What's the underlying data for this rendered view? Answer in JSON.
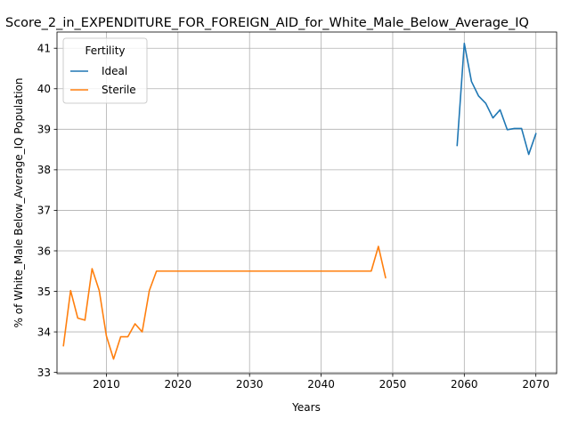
{
  "chart_data": {
    "type": "line",
    "title": "Score_2_in_EXPENDITURE_FOR_FOREIGN_AID_for_White_Male_Below_Average_IQ",
    "xlabel": "Years",
    "ylabel": "% of White_Male Below_Average_IQ Population",
    "xlim": [
      2003.1,
      2072.9
    ],
    "ylim": [
      32.97,
      41.4
    ],
    "x_ticks": [
      2010,
      2020,
      2030,
      2040,
      2050,
      2060,
      2070
    ],
    "y_ticks": [
      33,
      34,
      35,
      36,
      37,
      38,
      39,
      40,
      41
    ],
    "grid": true,
    "legend": {
      "title": "Fertility",
      "placement": "top-left"
    },
    "series": [
      {
        "name": "Ideal",
        "color": "#1f77b4",
        "x": [
          2059,
          2060,
          2061,
          2062,
          2063,
          2064,
          2065,
          2066,
          2067,
          2068,
          2069,
          2070
        ],
        "y": [
          38.6,
          41.12,
          40.18,
          39.82,
          39.64,
          39.28,
          39.48,
          38.99,
          39.02,
          39.02,
          38.38,
          38.89
        ]
      },
      {
        "name": "Sterile",
        "color": "#ff7f0e",
        "x": [
          2004,
          2005,
          2006,
          2007,
          2008,
          2009,
          2010,
          2011,
          2012,
          2013,
          2014,
          2015,
          2016,
          2017,
          2018,
          2019,
          2020,
          2021,
          2022,
          2023,
          2024,
          2025,
          2026,
          2027,
          2028,
          2029,
          2030,
          2031,
          2032,
          2033,
          2034,
          2035,
          2036,
          2037,
          2038,
          2039,
          2040,
          2041,
          2042,
          2043,
          2044,
          2045,
          2046,
          2047,
          2048,
          2049
        ],
        "y": [
          33.66,
          35.02,
          34.34,
          34.29,
          35.56,
          35.02,
          33.9,
          33.33,
          33.88,
          33.88,
          34.2,
          34.0,
          35.02,
          35.5,
          35.5,
          35.5,
          35.5,
          35.5,
          35.5,
          35.5,
          35.5,
          35.5,
          35.5,
          35.5,
          35.5,
          35.5,
          35.5,
          35.5,
          35.5,
          35.5,
          35.5,
          35.5,
          35.5,
          35.5,
          35.5,
          35.5,
          35.5,
          35.5,
          35.5,
          35.5,
          35.5,
          35.5,
          35.5,
          35.5,
          36.11,
          35.34
        ]
      }
    ]
  }
}
